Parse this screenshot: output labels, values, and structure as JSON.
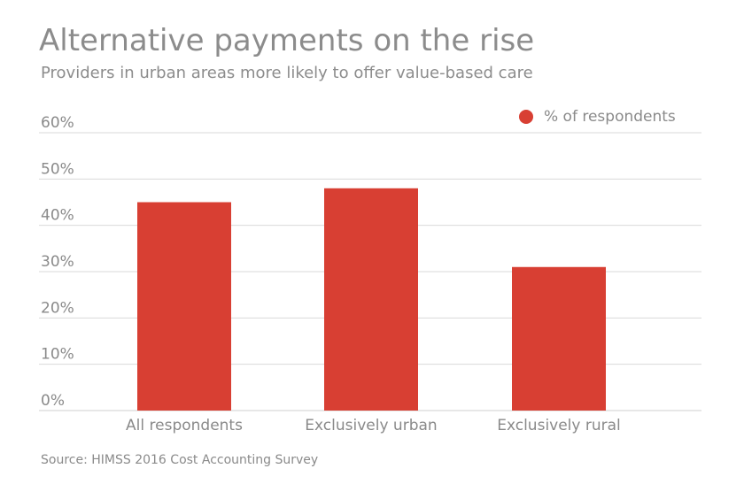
{
  "chart_data": {
    "type": "bar",
    "title": "Alternative payments on the rise",
    "subtitle": "Providers in urban areas more likely to offer value-based care",
    "categories": [
      "All respondents",
      "Exclusively urban",
      "Exclusively rural"
    ],
    "series": [
      {
        "name": "% of respondents",
        "values": [
          45,
          48,
          31
        ],
        "color": "#d83f33"
      }
    ],
    "ylim": [
      0,
      60
    ],
    "yticks": [
      0,
      10,
      20,
      30,
      40,
      50,
      60
    ],
    "ytick_labels": [
      "0%",
      "10%",
      "20%",
      "30%",
      "40%",
      "50%",
      "60%"
    ],
    "xlabel": "",
    "ylabel": "",
    "grid": true,
    "legend_position": "top-right",
    "gridline_color": "#d9d9d9"
  },
  "source": "Source: HIMSS 2016 Cost Accounting Survey"
}
